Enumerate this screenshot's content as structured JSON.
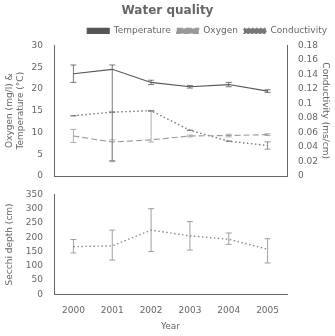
{
  "chart_data": [
    {
      "type": "line",
      "title": "Water quality",
      "x": [
        2000,
        2001,
        2002,
        2003,
        2004,
        2005
      ],
      "xlim": [
        1999.5,
        2005.5
      ],
      "xticks": [
        2000,
        2001,
        2002,
        2003,
        2004,
        2005
      ],
      "tick_labels": "y",
      "ylabel": "Oxygen (mg/l) &\nTemperature (°C)",
      "y2label": "Conductivity (ms/cm)",
      "ylim": [
        0,
        30
      ],
      "yticks": [
        0,
        5,
        10,
        15,
        20,
        25,
        30
      ],
      "y2lim": [
        0,
        0.18
      ],
      "y2ticks": [
        0,
        0.02,
        0.04,
        0.06,
        0.08,
        0.1,
        0.12,
        0.14,
        0.16,
        0.18
      ],
      "grid": false,
      "legend": "upper right",
      "series": [
        {
          "name": "Temperature",
          "color": "#555555",
          "line_style": "solid",
          "values": [
            23.5,
            24.5,
            21.5,
            20.5,
            21.0,
            19.5
          ],
          "err_up": [
            2.0,
            1.0,
            0.5,
            0.3,
            0.5,
            0.3
          ],
          "err_dn": [
            2.0,
            21.0,
            0.5,
            0.3,
            0.5,
            0.3
          ]
        },
        {
          "name": "Oxygen",
          "color": "#999999",
          "line_style": "dashed",
          "values": [
            9.2,
            7.8,
            8.3,
            9.2,
            9.3,
            9.5
          ],
          "err_up": [
            1.5,
            0.5,
            6.5,
            0.2,
            0.3,
            0.2
          ],
          "err_dn": [
            1.5,
            4.5,
            0.5,
            0.2,
            0.3,
            0.2
          ]
        },
        {
          "name": "Conductivity",
          "color": "#777777",
          "line_style": "dotted",
          "axis": "y2",
          "values": [
            0.083,
            0.088,
            0.09,
            0.063,
            0.048,
            0.042
          ],
          "err_up": [
            0.0,
            0.0,
            0.0,
            0.0,
            0.0,
            0.005
          ],
          "err_dn": [
            0.0,
            0.0,
            0.0,
            0.0,
            0.0,
            0.005
          ]
        }
      ]
    },
    {
      "type": "line",
      "x": [
        2000,
        2001,
        2002,
        2003,
        2004,
        2005
      ],
      "xlim": [
        1999.5,
        2005.5
      ],
      "xticks": [
        2000,
        2001,
        2002,
        2003,
        2004,
        2005
      ],
      "xlabel": "Year",
      "ylabel": "Secchi depth (cm)",
      "ylim": [
        0,
        350
      ],
      "yticks": [
        0,
        50,
        100,
        150,
        200,
        250,
        300,
        350
      ],
      "grid": false,
      "series": [
        {
          "color": "#888888",
          "line_style": "dotted",
          "values": [
            167,
            170,
            225,
            205,
            193,
            158
          ],
          "err_up": [
            25,
            55,
            75,
            50,
            22,
            37
          ],
          "err_dn": [
            22,
            50,
            75,
            50,
            18,
            48
          ]
        }
      ]
    }
  ]
}
